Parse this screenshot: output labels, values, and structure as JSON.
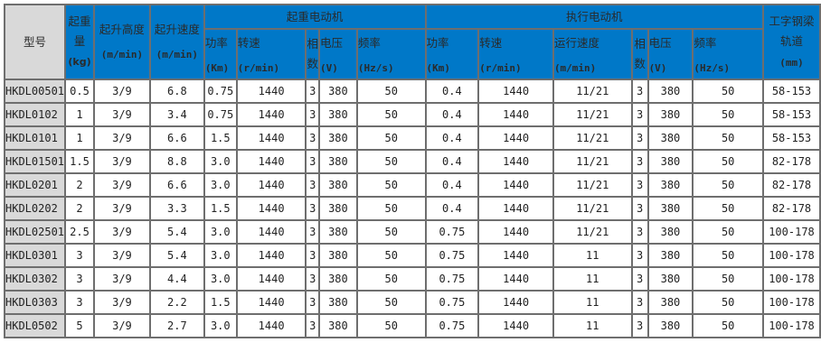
{
  "header": {
    "model": "型号",
    "load": "起重量",
    "load_unit": "(kg)",
    "lift_height": "起升高度",
    "lift_height_unit": "(m/min)",
    "lift_speed": "起升速度",
    "lift_speed_unit": "(m/min)",
    "hoist_motor": "起重电动机",
    "travel_motor": "执行电动机",
    "beam": "工字钢梁轨道",
    "beam_unit": "(mm)",
    "power": "功率",
    "power_unit": "(Km)",
    "rpm": "转速",
    "rpm_unit": "(r/min)",
    "phase": "相数",
    "voltage": "电压",
    "voltage_unit": "(V)",
    "freq": "频率",
    "freq_unit": "(Hz/s)",
    "run_speed": "运行速度",
    "run_speed_unit": "(m/min)"
  },
  "rows": [
    [
      "HKDL00501",
      "0.5",
      "3/9",
      "6.8",
      "0.75",
      "1440",
      "3",
      "380",
      "50",
      "0.4",
      "1440",
      "11/21",
      "3",
      "380",
      "50",
      "58-153"
    ],
    [
      "HKDL0102",
      "1",
      "3/9",
      "3.4",
      "0.75",
      "1440",
      "3",
      "380",
      "50",
      "0.4",
      "1440",
      "11/21",
      "3",
      "380",
      "50",
      "58-153"
    ],
    [
      "HKDL0101",
      "1",
      "3/9",
      "6.6",
      "1.5",
      "1440",
      "3",
      "380",
      "50",
      "0.4",
      "1440",
      "11/21",
      "3",
      "380",
      "50",
      "58-153"
    ],
    [
      "HKDL01501",
      "1.5",
      "3/9",
      "8.8",
      "3.0",
      "1440",
      "3",
      "380",
      "50",
      "0.4",
      "1440",
      "11/21",
      "3",
      "380",
      "50",
      "82-178"
    ],
    [
      "HKDL0201",
      "2",
      "3/9",
      "6.6",
      "3.0",
      "1440",
      "3",
      "380",
      "50",
      "0.4",
      "1440",
      "11/21",
      "3",
      "380",
      "50",
      "82-178"
    ],
    [
      "HKDL0202",
      "2",
      "3/9",
      "3.3",
      "1.5",
      "1440",
      "3",
      "380",
      "50",
      "0.4",
      "1440",
      "11/21",
      "3",
      "380",
      "50",
      "82-178"
    ],
    [
      "HKDL02501",
      "2.5",
      "3/9",
      "5.4",
      "3.0",
      "1440",
      "3",
      "380",
      "50",
      "0.75",
      "1440",
      "11/21",
      "3",
      "380",
      "50",
      "100-178"
    ],
    [
      "HKDL0301",
      "3",
      "3/9",
      "5.4",
      "3.0",
      "1440",
      "3",
      "380",
      "50",
      "0.75",
      "1440",
      "11",
      "3",
      "380",
      "50",
      "100-178"
    ],
    [
      "HKDL0302",
      "3",
      "3/9",
      "4.4",
      "3.0",
      "1440",
      "3",
      "380",
      "50",
      "0.75",
      "1440",
      "11",
      "3",
      "380",
      "50",
      "100-178"
    ],
    [
      "HKDL0303",
      "3",
      "3/9",
      "2.2",
      "1.5",
      "1440",
      "3",
      "380",
      "50",
      "0.75",
      "1440",
      "11",
      "3",
      "380",
      "50",
      "100-178"
    ],
    [
      "HKDL0502",
      "5",
      "3/9",
      "2.7",
      "3.0",
      "1440",
      "3",
      "380",
      "50",
      "0.75",
      "1440",
      "11",
      "3",
      "380",
      "50",
      "100-178"
    ]
  ]
}
